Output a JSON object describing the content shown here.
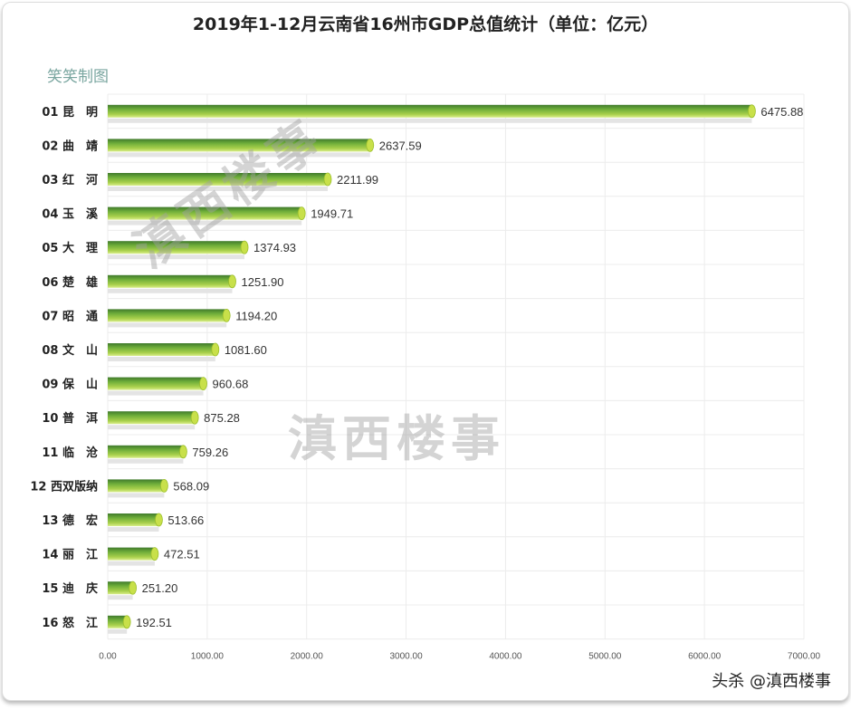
{
  "chart_data": {
    "type": "bar",
    "orientation": "horizontal",
    "title": "2019年1-12月云南省16州市GDP总值统计（单位：亿元）",
    "subtitle": "笑笑制图",
    "categories": [
      "01 昆　明",
      "02 曲　靖",
      "03 红　河",
      "04 玉　溪",
      "05 大　理",
      "06 楚　雄",
      "07 昭　通",
      "08 文　山",
      "09 保　山",
      "10 普　洱",
      "11 临　沧",
      "12 西双版纳",
      "13 德　宏",
      "14 丽　江",
      "15 迪　庆",
      "16 怒　江"
    ],
    "values": [
      6475.88,
      2637.59,
      2211.99,
      1949.71,
      1374.93,
      1251.9,
      1194.2,
      1081.6,
      960.68,
      875.28,
      759.26,
      568.09,
      513.66,
      472.51,
      251.2,
      192.51
    ],
    "data_labels": [
      "6475.88",
      "2637.59",
      "2211.99",
      "1949.71",
      "1374.93",
      "1251.90",
      "1194.20",
      "1081.60",
      "960.68",
      "875.28",
      "759.26",
      "568.09",
      "513.66",
      "472.51",
      "251.20",
      "192.51"
    ],
    "xlim": [
      0,
      7000
    ],
    "xticks": [
      "0.00",
      "1000.00",
      "2000.00",
      "3000.00",
      "4000.00",
      "5000.00",
      "6000.00",
      "7000.00"
    ],
    "grid": true,
    "bar_color": "#6fae3a",
    "bar_end_color": "#c8e04a"
  },
  "watermark": "滇西楼事",
  "credit": "头杀 @滇西楼事"
}
